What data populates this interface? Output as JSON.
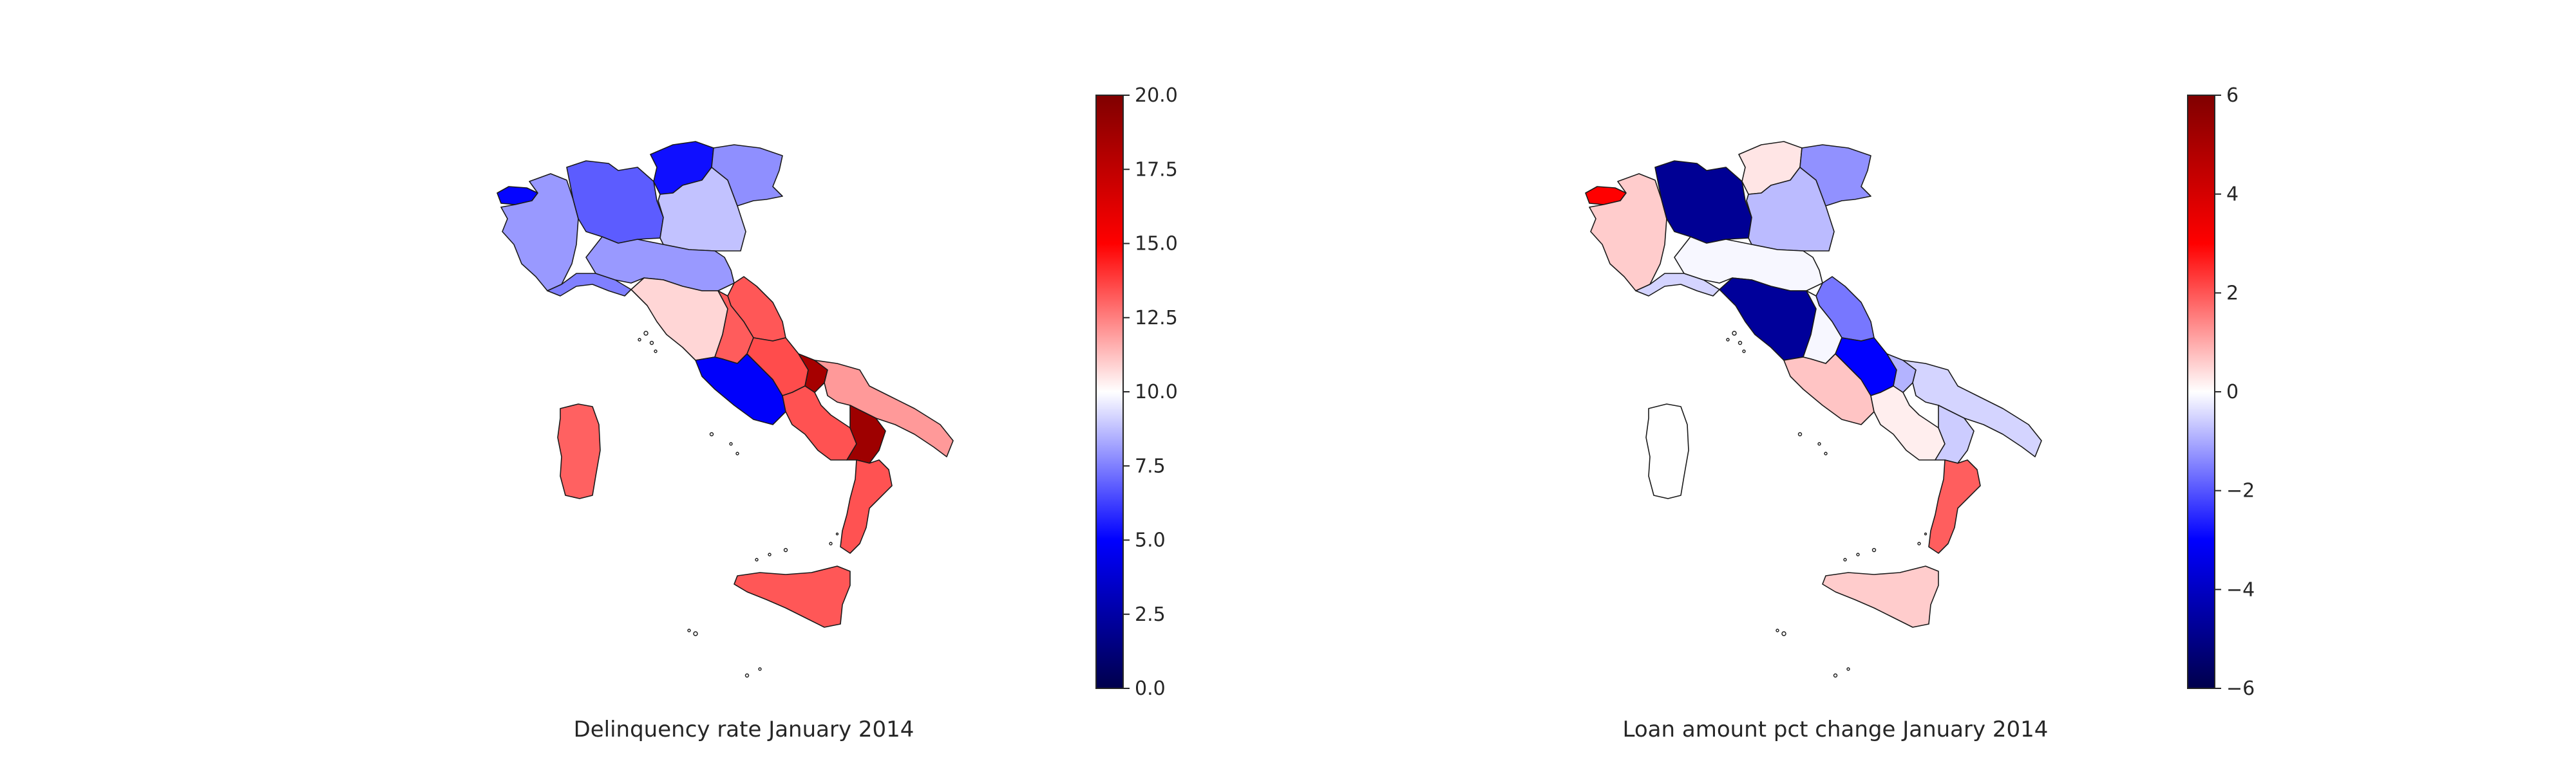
{
  "maps": [
    {
      "title": "Delinquency rate January 2014",
      "colorbar": {
        "min": 0,
        "max": 20,
        "ticks": [
          "0.0",
          "2.5",
          "5.0",
          "7.5",
          "10.0",
          "12.5",
          "15.0",
          "17.5",
          "20.0"
        ],
        "tick_values": [
          0,
          2.5,
          5,
          7.5,
          10,
          12.5,
          15,
          17.5,
          20
        ]
      },
      "regions": {
        "valle-d-aosta": 5.1,
        "piemonte": 8.0,
        "lombardia": 6.8,
        "trentino-alto-adige": 5.3,
        "veneto": 8.8,
        "friuli-venezia-giulia": 7.8,
        "liguria": 7.5,
        "emilia-romagna": 8.0,
        "toscana": 10.8,
        "umbria": 13.2,
        "marche": 13.3,
        "lazio": 4.9,
        "abruzzo": 13.5,
        "molise": 18.5,
        "campania": 13.4,
        "puglia": 12.0,
        "basilicata": 18.8,
        "calabria": 13.4,
        "sicilia": 13.3,
        "sardegna": 13.1
      }
    },
    {
      "title": "Loan amount pct change January 2014",
      "colorbar": {
        "min": -6,
        "max": 6,
        "ticks": [
          "−6",
          "−4",
          "−2",
          "0",
          "2",
          "4",
          "6"
        ],
        "tick_values": [
          -6,
          -4,
          -2,
          0,
          2,
          4,
          6
        ]
      },
      "regions": {
        "valle-d-aosta": 3.0,
        "piemonte": 0.6,
        "lombardia": -4.8,
        "trentino-alto-adige": 0.3,
        "veneto": -0.8,
        "friuli-venezia-giulia": -1.3,
        "liguria": -0.5,
        "emilia-romagna": -0.1,
        "toscana": -4.7,
        "umbria": -0.1,
        "marche": -1.6,
        "lazio": 0.7,
        "abruzzo": -3.0,
        "molise": -0.9,
        "campania": 0.2,
        "puglia": -0.5,
        "basilicata": -0.6,
        "calabria": 1.9,
        "sicilia": 0.6,
        "sardegna": 0.0
      }
    }
  ]
}
